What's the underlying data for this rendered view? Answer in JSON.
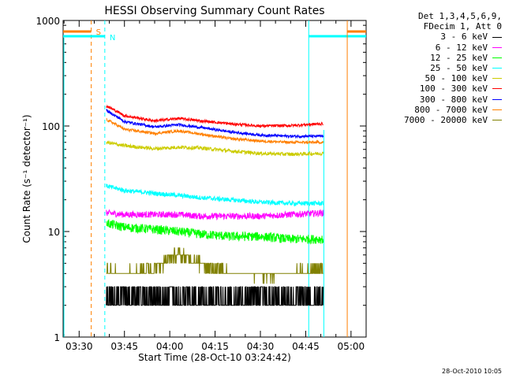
{
  "chart_data": {
    "type": "line",
    "title": "HESSI Observing Summary Count Rates",
    "xlabel": "Start Time (28-Oct-10 03:24:42)",
    "ylabel": "Count Rate (s⁻¹ detector⁻¹)",
    "yscale": "log",
    "ylim": [
      1,
      1000
    ],
    "x_tick_labels": [
      "03:30",
      "03:45",
      "04:00",
      "04:15",
      "04:30",
      "04:45",
      "05:00"
    ],
    "y_tick_labels": [
      "1",
      "10",
      "100",
      "1000"
    ],
    "legend_header": [
      "Det 1,3,4,5,6,9,",
      "FDecim 1, Att 0"
    ],
    "legend_position": "right",
    "x": [
      "03:39",
      "03:45",
      "03:55",
      "04:03",
      "04:10",
      "04:20",
      "04:30",
      "04:40",
      "04:50"
    ],
    "series": [
      {
        "name": "3 - 6 keV",
        "color": "#000000",
        "values": [
          2.6,
          2.8,
          2.5,
          2.8,
          2.6,
          2.4,
          2.3,
          2.4,
          2.3
        ]
      },
      {
        "name": "6 - 12 keV",
        "color": "#ff00ff",
        "values": [
          15,
          14.5,
          14.5,
          14.5,
          14,
          14,
          14,
          14.5,
          15
        ]
      },
      {
        "name": "12 - 25 keV",
        "color": "#00ff00",
        "values": [
          12,
          11,
          10.5,
          10,
          9.5,
          9,
          9,
          8.5,
          8.5
        ]
      },
      {
        "name": "25 - 50 keV",
        "color": "#00ffff",
        "values": [
          27,
          24.5,
          23,
          22,
          21,
          20,
          19,
          18.5,
          18.5
        ]
      },
      {
        "name": "50 - 100 keV",
        "color": "#cccc00",
        "values": [
          70,
          65,
          61,
          63,
          62,
          58,
          55,
          54,
          55
        ]
      },
      {
        "name": "100 - 300 keV",
        "color": "#ff0000",
        "values": [
          155,
          125,
          112,
          118,
          112,
          105,
          100,
          101,
          105
        ]
      },
      {
        "name": "300 - 800 keV",
        "color": "#0000ff",
        "values": [
          140,
          110,
          98,
          103,
          97,
          88,
          82,
          80,
          80
        ]
      },
      {
        "name": "800 - 7000 keV",
        "color": "#ff8000",
        "values": [
          115,
          93,
          85,
          90,
          84,
          76,
          72,
          70,
          70
        ]
      },
      {
        "name": "7000 - 20000 keV",
        "color": "#808000",
        "values": [
          4.2,
          4.0,
          4.5,
          6.2,
          5.0,
          4.1,
          3.9,
          4.0,
          4.4
        ]
      }
    ],
    "markers": [
      {
        "label": "S",
        "color": "#ff8000"
      },
      {
        "label": "N",
        "color": "#00ffff"
      }
    ]
  },
  "footer": {
    "timestamp": "28-Oct-2010 10:05"
  }
}
